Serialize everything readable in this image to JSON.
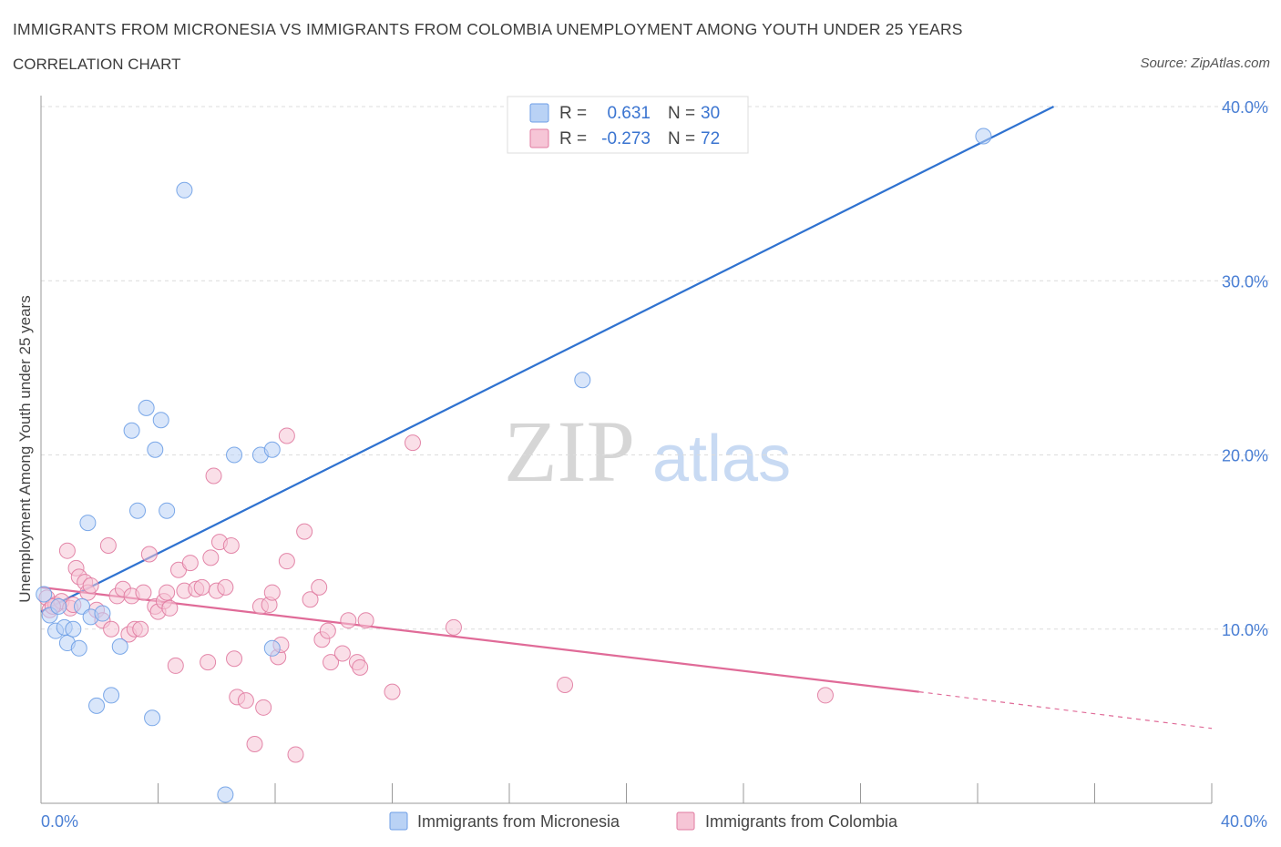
{
  "title": "IMMIGRANTS FROM MICRONESIA VS IMMIGRANTS FROM COLOMBIA UNEMPLOYMENT AMONG YOUTH UNDER 25 YEARS",
  "subtitle": "CORRELATION CHART",
  "source": "Source: ZipAtlas.com",
  "watermark": {
    "zip": "ZIP",
    "atlas": "atlas"
  },
  "colors": {
    "micronesia": "#6d9ee6",
    "micronesia_fill": "#b9d2f5",
    "colombia": "#e07aa0",
    "colombia_fill": "#f6c5d6",
    "micronesia_line": "#2f72d0",
    "colombia_line": "#e06b98",
    "tick": "#4a7fd4"
  },
  "legend": {
    "rows": [
      {
        "r_label": "R =",
        "r_value": "0.631",
        "n_label": "N =",
        "n_value": "30"
      },
      {
        "r_label": "R =",
        "r_value": "-0.273",
        "n_label": "N =",
        "n_value": "72"
      }
    ]
  },
  "chart_data": {
    "type": "scatter",
    "title": "IMMIGRANTS FROM MICRONESIA VS IMMIGRANTS FROM COLOMBIA UNEMPLOYMENT AMONG YOUTH UNDER 25 YEARS",
    "xlabel": "",
    "ylabel": "Unemployment Among Youth under 25 years",
    "xlim": [
      0,
      40
    ],
    "ylim": [
      0,
      40
    ],
    "x_tick_labels": [
      "0.0%",
      "40.0%"
    ],
    "y_ticks": [
      10,
      20,
      30,
      40
    ],
    "y_tick_labels": [
      "10.0%",
      "20.0%",
      "30.0%",
      "40.0%"
    ],
    "legend_position": "bottom",
    "series": [
      {
        "name": "Immigrants from Micronesia",
        "R": 0.631,
        "N": 30,
        "trend": {
          "x": [
            0,
            34.6
          ],
          "y": [
            11.0,
            40.0
          ]
        },
        "points": [
          [
            0.1,
            12.0
          ],
          [
            0.3,
            10.8
          ],
          [
            0.5,
            9.9
          ],
          [
            0.6,
            11.3
          ],
          [
            0.8,
            10.1
          ],
          [
            0.9,
            9.2
          ],
          [
            1.1,
            10.0
          ],
          [
            1.3,
            8.9
          ],
          [
            1.4,
            11.3
          ],
          [
            1.6,
            16.1
          ],
          [
            1.7,
            10.7
          ],
          [
            1.9,
            5.6
          ],
          [
            2.1,
            10.9
          ],
          [
            2.4,
            6.2
          ],
          [
            2.7,
            9.0
          ],
          [
            3.1,
            21.4
          ],
          [
            3.3,
            16.8
          ],
          [
            3.6,
            22.7
          ],
          [
            3.8,
            4.9
          ],
          [
            3.9,
            20.3
          ],
          [
            4.1,
            22.0
          ],
          [
            4.3,
            16.8
          ],
          [
            4.9,
            35.2
          ],
          [
            6.3,
            0.5
          ],
          [
            6.6,
            20.0
          ],
          [
            7.5,
            20.0
          ],
          [
            7.9,
            20.3
          ],
          [
            7.9,
            8.9
          ],
          [
            18.5,
            24.3
          ],
          [
            32.2,
            38.3
          ]
        ]
      },
      {
        "name": "Immigrants from Colombia",
        "R": -0.273,
        "N": 72,
        "trend": {
          "x": [
            0,
            30.0,
            40.0
          ],
          "y": [
            12.4,
            6.4,
            4.3
          ],
          "dashed_from_x": 30.0
        },
        "points": [
          [
            0.2,
            11.8
          ],
          [
            0.3,
            11.1
          ],
          [
            0.5,
            11.4
          ],
          [
            0.7,
            11.6
          ],
          [
            0.9,
            14.5
          ],
          [
            1.0,
            11.2
          ],
          [
            1.2,
            13.5
          ],
          [
            1.3,
            13.0
          ],
          [
            1.5,
            12.7
          ],
          [
            1.6,
            12.1
          ],
          [
            1.7,
            12.5
          ],
          [
            1.9,
            11.1
          ],
          [
            2.1,
            10.5
          ],
          [
            2.3,
            14.8
          ],
          [
            2.4,
            10.0
          ],
          [
            2.6,
            11.9
          ],
          [
            2.8,
            12.3
          ],
          [
            3.0,
            9.7
          ],
          [
            3.1,
            11.9
          ],
          [
            3.2,
            10.0
          ],
          [
            3.4,
            10.0
          ],
          [
            3.5,
            12.1
          ],
          [
            3.7,
            14.3
          ],
          [
            3.9,
            11.3
          ],
          [
            4.0,
            11.0
          ],
          [
            4.2,
            11.6
          ],
          [
            4.3,
            12.1
          ],
          [
            4.4,
            11.2
          ],
          [
            4.6,
            7.9
          ],
          [
            4.7,
            13.4
          ],
          [
            4.9,
            12.2
          ],
          [
            5.1,
            13.8
          ],
          [
            5.3,
            12.3
          ],
          [
            5.5,
            12.4
          ],
          [
            5.7,
            8.1
          ],
          [
            5.8,
            14.1
          ],
          [
            5.9,
            18.8
          ],
          [
            6.0,
            12.2
          ],
          [
            6.1,
            15.0
          ],
          [
            6.3,
            12.4
          ],
          [
            6.5,
            14.8
          ],
          [
            6.6,
            8.3
          ],
          [
            6.7,
            6.1
          ],
          [
            7.0,
            5.9
          ],
          [
            7.3,
            3.4
          ],
          [
            7.5,
            11.3
          ],
          [
            7.6,
            5.5
          ],
          [
            7.8,
            11.4
          ],
          [
            7.9,
            12.1
          ],
          [
            8.1,
            8.4
          ],
          [
            8.2,
            9.1
          ],
          [
            8.4,
            13.9
          ],
          [
            8.4,
            21.1
          ],
          [
            8.7,
            2.8
          ],
          [
            9.0,
            15.6
          ],
          [
            9.2,
            11.7
          ],
          [
            9.5,
            12.4
          ],
          [
            9.6,
            9.4
          ],
          [
            9.8,
            9.9
          ],
          [
            9.9,
            8.1
          ],
          [
            10.3,
            8.6
          ],
          [
            10.5,
            10.5
          ],
          [
            10.8,
            8.1
          ],
          [
            10.9,
            7.8
          ],
          [
            11.1,
            10.5
          ],
          [
            12.0,
            6.4
          ],
          [
            12.7,
            20.7
          ],
          [
            14.1,
            10.1
          ],
          [
            17.9,
            6.8
          ],
          [
            26.8,
            6.2
          ],
          [
            0.4,
            11.3
          ],
          [
            1.1,
            11.4
          ]
        ]
      }
    ]
  }
}
